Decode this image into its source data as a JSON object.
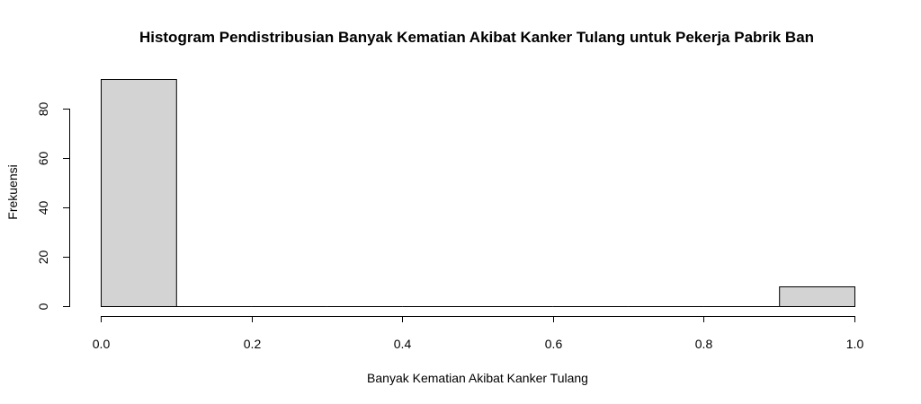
{
  "chart_data": {
    "type": "bar",
    "title": "Histogram Pendistribusian Banyak Kematian Akibat Kanker Tulang untuk Pekerja Pabrik Ban",
    "xlabel": "Banyak Kematian Akibat Kanker Tulang",
    "ylabel": "Frekuensi",
    "xlim": [
      0,
      1
    ],
    "ylim": [
      0,
      92
    ],
    "bins": [
      {
        "x0": 0.0,
        "x1": 0.1,
        "value": 92
      },
      {
        "x0": 0.1,
        "x1": 0.2,
        "value": 0
      },
      {
        "x0": 0.2,
        "x1": 0.3,
        "value": 0
      },
      {
        "x0": 0.3,
        "x1": 0.4,
        "value": 0
      },
      {
        "x0": 0.4,
        "x1": 0.5,
        "value": 0
      },
      {
        "x0": 0.5,
        "x1": 0.6,
        "value": 0
      },
      {
        "x0": 0.6,
        "x1": 0.7,
        "value": 0
      },
      {
        "x0": 0.7,
        "x1": 0.8,
        "value": 0
      },
      {
        "x0": 0.8,
        "x1": 0.9,
        "value": 0
      },
      {
        "x0": 0.9,
        "x1": 1.0,
        "value": 8
      }
    ],
    "x_ticks": [
      0.0,
      0.2,
      0.4,
      0.6,
      0.8,
      1.0
    ],
    "x_tick_labels": [
      "0.0",
      "0.2",
      "0.4",
      "0.6",
      "0.8",
      "1.0"
    ],
    "y_ticks": [
      0,
      20,
      40,
      60,
      80
    ],
    "y_tick_labels": [
      "0",
      "20",
      "40",
      "60",
      "80"
    ],
    "bar_fill": "#d3d3d3",
    "bar_stroke": "#000000",
    "grid": false,
    "legend": "none"
  }
}
